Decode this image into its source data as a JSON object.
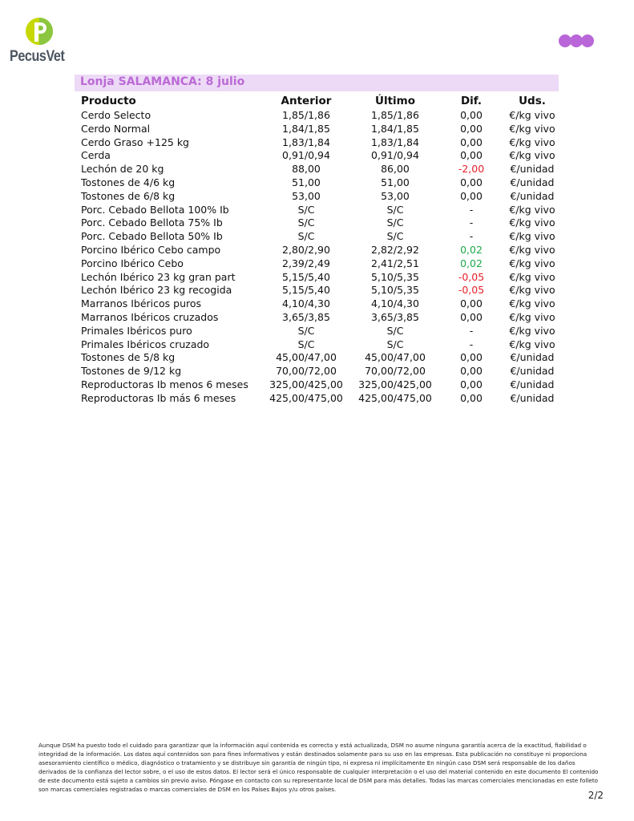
{
  "header": {
    "logo_text": "PecusVet",
    "brand_color": "#b866d8",
    "logo_colors": [
      "#c6d800",
      "#8cc63f"
    ]
  },
  "title": "Lonja SALAMANCA: 8 julio",
  "table": {
    "columns": [
      "Producto",
      "Anterior",
      "Último",
      "Dif.",
      "Uds."
    ],
    "rows": [
      [
        "Cerdo Selecto",
        "1,85/1,86",
        "1,85/1,86",
        "0,00",
        "€/kg vivo"
      ],
      [
        "Cerdo Normal",
        "1,84/1,85",
        "1,84/1,85",
        "0,00",
        "€/kg vivo"
      ],
      [
        "Cerdo Graso +125 kg",
        "1,83/1,84",
        "1,83/1,84",
        "0,00",
        "€/kg vivo"
      ],
      [
        "Cerda",
        "0,91/0,94",
        "0,91/0,94",
        "0,00",
        "€/kg vivo"
      ],
      [
        "Lechón de 20 kg",
        "88,00",
        "86,00",
        "-2,00",
        "€/unidad"
      ],
      [
        "Tostones de 4/6 kg",
        "51,00",
        "51,00",
        "0,00",
        "€/unidad"
      ],
      [
        "Tostones de 6/8 kg",
        "53,00",
        "53,00",
        "0,00",
        "€/unidad"
      ],
      [
        "Porc. Cebado Bellota 100% Ib",
        "S/C",
        "S/C",
        "-",
        "€/kg vivo"
      ],
      [
        "Porc. Cebado Bellota 75% Ib",
        "S/C",
        "S/C",
        "-",
        "€/kg vivo"
      ],
      [
        "Porc. Cebado Bellota 50% Ib",
        "S/C",
        "S/C",
        "-",
        "€/kg vivo"
      ],
      [
        "Porcino Ibérico Cebo campo",
        "2,80/2,90",
        "2,82/2,92",
        "0,02",
        "€/kg vivo"
      ],
      [
        "Porcino Ibérico Cebo",
        "2,39/2,49",
        "2,41/2,51",
        "0,02",
        "€/kg vivo"
      ],
      [
        "Lechón Ibérico 23 kg gran part",
        "5,15/5,40",
        "5,10/5,35",
        "-0,05",
        "€/kg vivo"
      ],
      [
        "Lechón Ibérico 23 kg recogida",
        "5,15/5,40",
        "5,10/5,35",
        "-0,05",
        "€/kg vivo"
      ],
      [
        "Marranos Ibéricos puros",
        "4,10/4,30",
        "4,10/4,30",
        "0,00",
        "€/kg vivo"
      ],
      [
        "Marranos Ibéricos cruzados",
        "3,65/3,85",
        "3,65/3,85",
        "0,00",
        "€/kg vivo"
      ],
      [
        "Primales Ibéricos puro",
        "S/C",
        "S/C",
        "-",
        "€/kg vivo"
      ],
      [
        "Primales Ibéricos cruzado",
        "S/C",
        "S/C",
        "-",
        "€/kg vivo"
      ],
      [
        "Tostones de 5/8 kg",
        "45,00/47,00",
        "45,00/47,00",
        "0,00",
        "€/unidad"
      ],
      [
        "Tostones de 9/12 kg",
        "70,00/72,00",
        "70,00/72,00",
        "0,00",
        "€/unidad"
      ],
      [
        "Reproductoras Ib menos 6 meses",
        "325,00/425,00",
        "325,00/425,00",
        "0,00",
        "€/unidad"
      ],
      [
        "Reproductoras Ib más 6 meses",
        "425,00/475,00",
        "425,00/475,00",
        "0,00",
        "€/unidad"
      ]
    ],
    "colors": {
      "negative": "#e8202a",
      "positive": "#1fa84a"
    }
  },
  "footer": {
    "disclaimer": "Aunque DSM ha puesto todo el cuidado para garantizar que la información aquí contenida es correcta y está actualizada, DSM no asume ninguna garantía acerca de la exactitud, fiabilidad o integridad de la información. Los datos aquí contenidos son para fines informativos y están destinados solamente para su uso en las empresas. Esta publicación no constituye ni proporciona asesoramiento científico o médico, diagnóstico o tratamiento y se distribuye sin garantía de ningún tipo, ni expresa ni implícitamente En ningún caso DSM será responsable de los daños derivados de la confianza del lector sobre, o el uso de estos datos. El lector será el único responsable de cualquier interpretación o el uso del material contenido en este documento El contenido de este documento está sujeto a cambios sin previo aviso. Póngase en contacto con su representante local de DSM para más detalles. Todas las marcas comerciales mencionadas en este folleto son marcas comerciales registradas o marcas comerciales de DSM en los Países Bajos y/u otros países.",
    "page": "2/2"
  }
}
